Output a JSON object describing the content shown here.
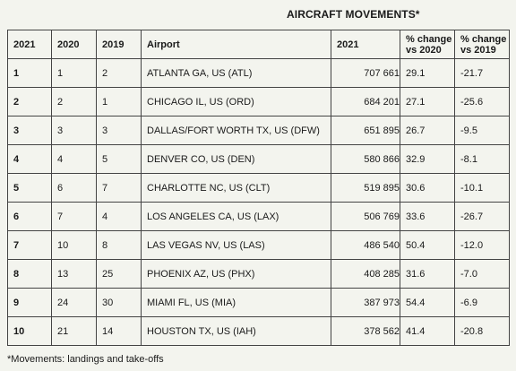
{
  "title": "AIRCRAFT MOVEMENTS*",
  "table": {
    "headers": [
      "2021",
      "2020",
      "2019",
      "Airport",
      "2021",
      "% change vs 2020",
      "% change vs 2019"
    ],
    "header_lines": {
      "pct2020": [
        "% change",
        "vs 2020"
      ],
      "pct2019": [
        "% change",
        "vs 2019"
      ]
    },
    "rows": [
      [
        "1",
        "1",
        "2",
        "ATLANTA GA, US (ATL)",
        "707 661",
        "29.1",
        "-21.7"
      ],
      [
        "2",
        "2",
        "1",
        "CHICAGO IL, US (ORD)",
        "684 201",
        "27.1",
        "-25.6"
      ],
      [
        "3",
        "3",
        "3",
        "DALLAS/FORT WORTH TX, US (DFW)",
        "651 895",
        "26.7",
        "-9.5"
      ],
      [
        "4",
        "4",
        "5",
        "DENVER CO, US (DEN)",
        "580 866",
        "32.9",
        "-8.1"
      ],
      [
        "5",
        "6",
        "7",
        "CHARLOTTE NC, US (CLT)",
        "519 895",
        "30.6",
        "-10.1"
      ],
      [
        "6",
        "7",
        "4",
        "LOS ANGELES CA, US (LAX)",
        "506 769",
        "33.6",
        "-26.7"
      ],
      [
        "7",
        "10",
        "8",
        "LAS VEGAS NV, US (LAS)",
        "486 540",
        "50.4",
        "-12.0"
      ],
      [
        "8",
        "13",
        "25",
        "PHOENIX AZ, US (PHX)",
        "408 285",
        "31.6",
        "-7.0"
      ],
      [
        "9",
        "24",
        "30",
        "MIAMI FL, US (MIA)",
        "387 973",
        "54.4",
        "-6.9"
      ],
      [
        "10",
        "21",
        "14",
        "HOUSTON TX, US (IAH)",
        "378 562",
        "41.4",
        "-20.8"
      ]
    ]
  },
  "footnote": "*Movements: landings and take-offs"
}
